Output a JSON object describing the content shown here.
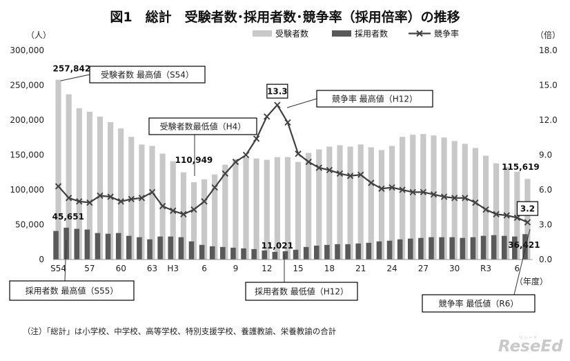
{
  "chart_data": {
    "type": "bar+line",
    "title": "図1　総計　受験者数･採用者数･競争率（採用倍率）の推移",
    "left_axis": {
      "unit": "（人）",
      "range": [
        0,
        300000
      ],
      "ticks": [
        "0",
        "50,000",
        "100,000",
        "150,000",
        "200,000",
        "250,000",
        "300,000"
      ]
    },
    "right_axis": {
      "unit": "（倍）",
      "range": [
        0,
        18
      ],
      "ticks": [
        "0.0",
        "3.0",
        "6.0",
        "9.0",
        "12.0",
        "15.0",
        "18.0"
      ]
    },
    "x_unit": "（年度）",
    "x_tick_labels": [
      {
        "index": 0,
        "label": "S54"
      },
      {
        "index": 3,
        "label": "57"
      },
      {
        "index": 6,
        "label": "60"
      },
      {
        "index": 9,
        "label": "63"
      },
      {
        "index": 11,
        "label": "H3"
      },
      {
        "index": 14,
        "label": "6"
      },
      {
        "index": 17,
        "label": "9"
      },
      {
        "index": 20,
        "label": "12"
      },
      {
        "index": 23,
        "label": "15"
      },
      {
        "index": 26,
        "label": "18"
      },
      {
        "index": 29,
        "label": "21"
      },
      {
        "index": 32,
        "label": "24"
      },
      {
        "index": 35,
        "label": "27"
      },
      {
        "index": 38,
        "label": "30"
      },
      {
        "index": 41,
        "label": "R3"
      },
      {
        "index": 44,
        "label": "6"
      }
    ],
    "categories": [
      "S54",
      "S55",
      "S56",
      "S57",
      "S58",
      "S59",
      "S60",
      "S61",
      "S62",
      "S63",
      "H1",
      "H2",
      "H3",
      "H4",
      "H5",
      "H6",
      "H7",
      "H8",
      "H9",
      "H10",
      "H11",
      "H12",
      "H13",
      "H14",
      "H15",
      "H16",
      "H17",
      "H18",
      "H19",
      "H20",
      "H21",
      "H22",
      "H23",
      "H24",
      "H25",
      "H26",
      "H27",
      "H28",
      "H29",
      "H30",
      "R1",
      "R2",
      "R3",
      "R4",
      "R5",
      "R6"
    ],
    "legend": {
      "placement": "top-right",
      "items": [
        "受験者数",
        "採用者数",
        "競争率"
      ]
    },
    "series": [
      {
        "name": "受験者数",
        "kind": "bar",
        "axis": "left",
        "color": "#c8c8c8",
        "values": [
          257842,
          237000,
          217000,
          212000,
          205000,
          197000,
          188000,
          176000,
          165000,
          163000,
          152000,
          141000,
          125000,
          110949,
          115000,
          122000,
          136000,
          144000,
          147000,
          145000,
          143000,
          147000,
          147000,
          140000,
          153000,
          158000,
          162000,
          164000,
          162000,
          165000,
          161000,
          157000,
          163000,
          176000,
          179000,
          180000,
          178000,
          175000,
          170000,
          166000,
          160000,
          149000,
          138000,
          133000,
          126000,
          115619
        ]
      },
      {
        "name": "採用者数",
        "kind": "bar",
        "axis": "left",
        "color": "#595959",
        "values": [
          41000,
          45651,
          44000,
          43000,
          38000,
          37000,
          38000,
          34000,
          32000,
          29000,
          33000,
          33000,
          32000,
          26000,
          21000,
          19000,
          18000,
          17000,
          16000,
          15000,
          13000,
          11021,
          12000,
          14000,
          18000,
          20000,
          21000,
          22000,
          22000,
          23000,
          24000,
          26000,
          27000,
          29000,
          30000,
          31000,
          32000,
          32000,
          32000,
          31000,
          32000,
          34000,
          35000,
          34000,
          33000,
          36421
        ]
      },
      {
        "name": "競争率",
        "kind": "line",
        "axis": "right",
        "color": "#404040",
        "marker": "x",
        "values": [
          6.3,
          5.3,
          5.0,
          4.9,
          5.5,
          5.4,
          5.0,
          5.2,
          5.3,
          5.8,
          4.6,
          4.2,
          3.9,
          4.3,
          5.0,
          6.2,
          7.4,
          8.4,
          9.0,
          10.4,
          12.3,
          13.3,
          11.8,
          9.1,
          8.4,
          7.9,
          7.7,
          7.4,
          7.2,
          7.3,
          6.6,
          6.1,
          6.2,
          6.0,
          5.8,
          5.8,
          5.6,
          5.4,
          5.3,
          5.3,
          4.9,
          4.3,
          3.9,
          3.8,
          3.6,
          3.2
        ]
      }
    ],
    "value_labels": [
      {
        "series": "受験者数",
        "index": 0,
        "text": "257,842"
      },
      {
        "series": "採用者数",
        "index": 1,
        "text": "45,651"
      },
      {
        "series": "受験者数",
        "index": 13,
        "text": "110,949"
      },
      {
        "series": "採用者数",
        "index": 21,
        "text": "11,021"
      },
      {
        "series": "競争率",
        "index": 21,
        "text": "13.3"
      },
      {
        "series": "受験者数",
        "index": 45,
        "text": "115,619"
      },
      {
        "series": "採用者数",
        "index": 45,
        "text": "36,421"
      },
      {
        "series": "競争率",
        "index": 45,
        "text": "3.2"
      }
    ],
    "annotations": [
      {
        "text": "受験者数 最高値（S54）",
        "target_series": "受験者数",
        "target_index": 0
      },
      {
        "text": "受験者数最低値（H4）",
        "target_series": "受験者数",
        "target_index": 13
      },
      {
        "text": "競争率 最高値（H12）",
        "target_series": "競争率",
        "target_index": 21
      },
      {
        "text": "採用者数 最高値（S55）",
        "target_series": "採用者数",
        "target_index": 1
      },
      {
        "text": "採用者数 最低値（H12）",
        "target_series": "採用者数",
        "target_index": 21
      },
      {
        "text": "競争率 最低値（R6）",
        "target_series": "競争率",
        "target_index": 45
      }
    ]
  },
  "footnote": "（注）「総計」は小学校、中学校、高等学校、特別支援学校、養護教諭、栄養教諭の合計",
  "logo": {
    "text": "ReseEd",
    "sub": "リシード"
  }
}
